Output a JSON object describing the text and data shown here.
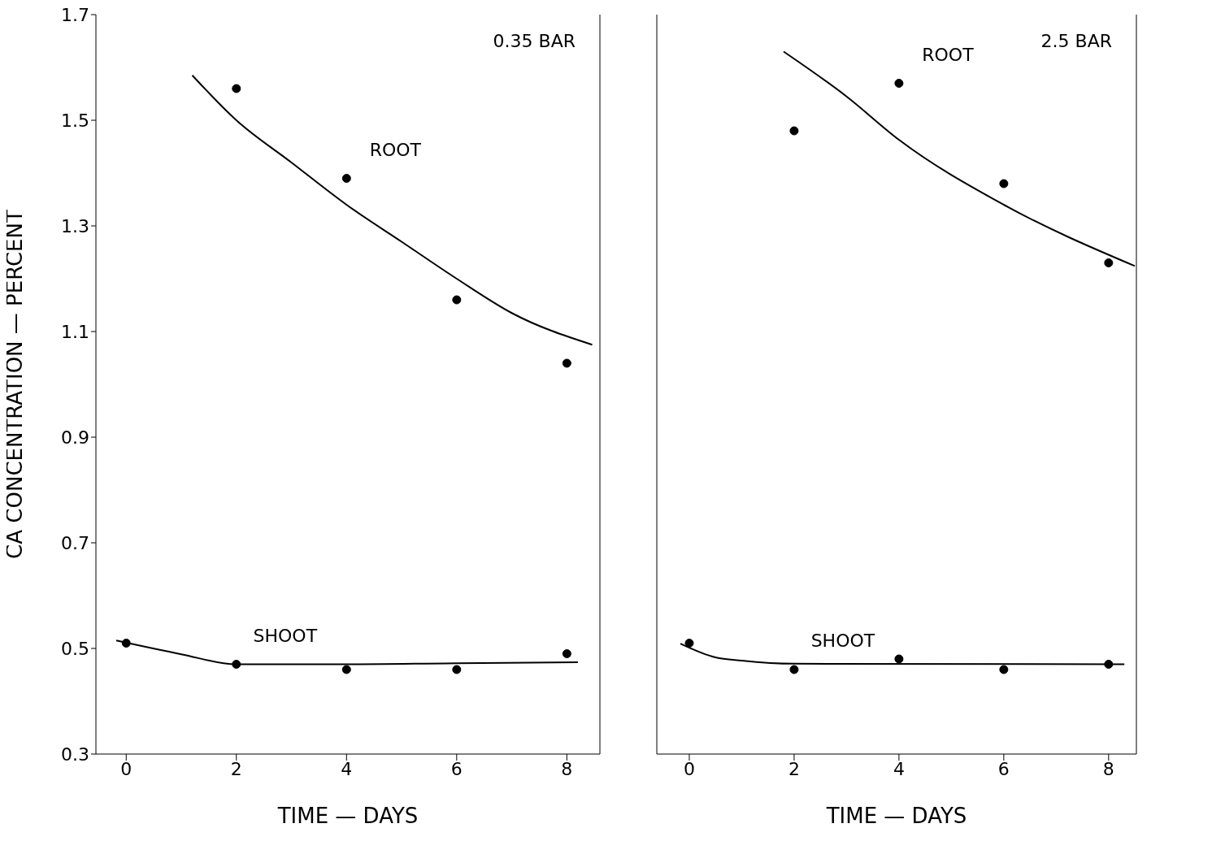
{
  "chart_data": [
    {
      "type": "scatter",
      "xlabel": "TIME — DAYS",
      "ylabel": "CA CONCENTRATION — PERCENT",
      "annotations": [
        "0.35 BAR"
      ],
      "xlim": [
        -0.55,
        8.6
      ],
      "xticks": [
        0,
        2,
        4,
        6,
        8
      ],
      "ylim": [
        0.3,
        1.7
      ],
      "yticks": [
        0.3,
        0.5,
        0.7,
        0.9,
        1.1,
        1.3,
        1.5,
        1.7
      ],
      "grid": false,
      "legend": false,
      "series": [
        {
          "name": "ROOT",
          "marker": "circle",
          "color": "#000000",
          "x": [
            2,
            4,
            6,
            8
          ],
          "values": [
            1.56,
            1.39,
            1.16,
            1.04
          ]
        },
        {
          "type": "line",
          "marker": "none",
          "color": "#000000",
          "x": [
            1.2,
            2,
            3,
            4,
            5,
            6,
            7,
            8.46
          ],
          "values": [
            1.585,
            1.5,
            1.42,
            1.34,
            1.27,
            1.2,
            1.135,
            1.075
          ]
        },
        {
          "name": "SHOOT",
          "marker": "circle",
          "color": "#000000",
          "x": [
            0,
            2,
            4,
            6,
            8
          ],
          "values": [
            0.51,
            0.47,
            0.46,
            0.46,
            0.49
          ]
        },
        {
          "type": "line",
          "marker": "none",
          "color": "#000000",
          "x": [
            -0.18,
            1,
            2,
            4,
            6,
            8.2
          ],
          "values": [
            0.515,
            0.489,
            0.47,
            0.47,
            0.472,
            0.474
          ]
        }
      ]
    },
    {
      "type": "scatter",
      "xlabel": "TIME — DAYS",
      "annotations": [
        "2.5 BAR"
      ],
      "tick_labels": "x",
      "xlim": [
        -0.62,
        8.53
      ],
      "xticks": [
        0,
        2,
        4,
        6,
        8
      ],
      "ylim": [
        0.3,
        1.7
      ],
      "yticks": [
        0.3,
        0.5,
        0.7,
        0.9,
        1.1,
        1.3,
        1.5,
        1.7
      ],
      "grid": false,
      "legend": false,
      "series": [
        {
          "name": "ROOT",
          "marker": "circle",
          "color": "#000000",
          "x": [
            2,
            4,
            6,
            8
          ],
          "values": [
            1.48,
            1.57,
            1.38,
            1.23
          ]
        },
        {
          "type": "line",
          "marker": "none",
          "color": "#000000",
          "x": [
            1.8,
            3,
            4,
            6,
            8.5
          ],
          "values": [
            1.63,
            1.545,
            1.463,
            1.34,
            1.224
          ]
        },
        {
          "name": "SHOOT",
          "marker": "circle",
          "color": "#000000",
          "x": [
            0,
            2,
            4,
            6,
            8
          ],
          "values": [
            0.51,
            0.46,
            0.48,
            0.46,
            0.47
          ]
        },
        {
          "type": "line",
          "marker": "none",
          "color": "#000000",
          "x": [
            -0.17,
            0.5,
            1,
            2,
            8.3
          ],
          "values": [
            0.509,
            0.483,
            0.477,
            0.471,
            0.47
          ]
        }
      ]
    }
  ]
}
